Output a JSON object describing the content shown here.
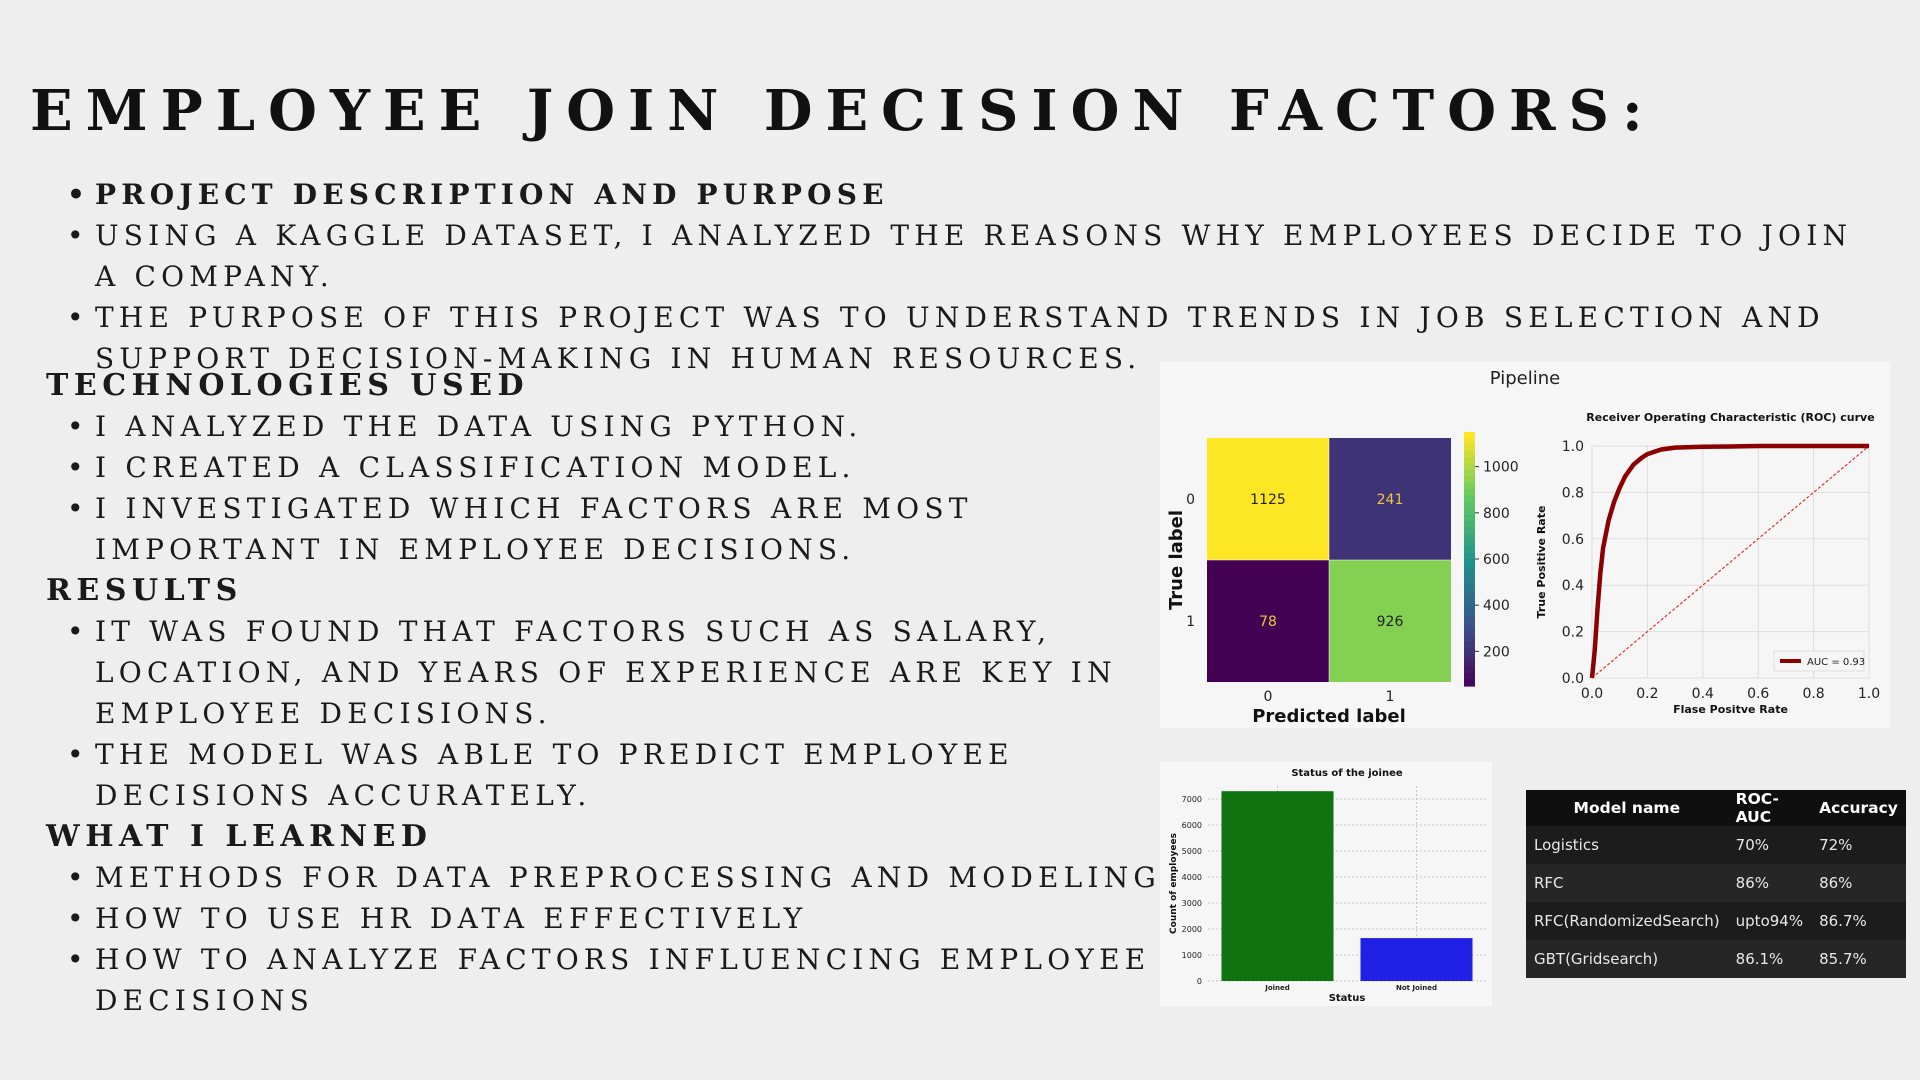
{
  "title": "EMPLOYEE JOIN DECISION FACTORS:",
  "sections": {
    "purpose": {
      "items": [
        "PROJECT DESCRIPTION AND PURPOSE",
        "USING A KAGGLE DATASET, I ANALYZED THE REASONS WHY EMPLOYEES DECIDE TO JOIN A COMPANY.",
        " THE PURPOSE OF THIS PROJECT WAS TO UNDERSTAND TRENDS IN JOB SELECTION AND SUPPORT DECISION-MAKING IN HUMAN RESOURCES."
      ]
    },
    "technologies": {
      "heading": "TECHNOLOGIES USED",
      "items": [
        "I ANALYZED THE DATA USING PYTHON.",
        "I CREATED A CLASSIFICATION MODEL.",
        "I INVESTIGATED WHICH FACTORS ARE MOST IMPORTANT IN EMPLOYEE DECISIONS."
      ]
    },
    "results": {
      "heading": "RESULTS",
      "items": [
        "IT WAS FOUND THAT FACTORS SUCH AS SALARY, LOCATION, AND YEARS OF EXPERIENCE ARE KEY IN EMPLOYEE DECISIONS.",
        " THE MODEL WAS ABLE TO PREDICT EMPLOYEE DECISIONS ACCURATELY."
      ]
    },
    "learned": {
      "heading": "WHAT I LEARNED",
      "items": [
        "METHODS FOR DATA PREPROCESSING AND MODELING",
        "HOW TO USE HR DATA EFFECTIVELY",
        "HOW TO ANALYZE FACTORS INFLUENCING EMPLOYEE DECISIONS"
      ]
    }
  },
  "colors": {
    "background": "#eeeeee",
    "roc_curve": "#8b0000",
    "bar_joined": "#0f730f",
    "bar_not_joined": "#1f1fe6"
  },
  "chart_data": [
    {
      "type": "heatmap",
      "title": "Pipeline",
      "xlabel": "Predicted label",
      "ylabel": "True label",
      "x_ticks": [
        "0",
        "1"
      ],
      "y_ticks": [
        "0",
        "1"
      ],
      "matrix": [
        [
          1125,
          241
        ],
        [
          78,
          926
        ]
      ],
      "colorbar_ticks": [
        "200",
        "400",
        "600",
        "800",
        "1000"
      ],
      "colormap": "viridis"
    },
    {
      "type": "line",
      "title": "Receiver Operating Characteristic (ROC) curve",
      "xlabel": "Flase Positve Rate",
      "ylabel": "True Positive Rate",
      "xlim": [
        0,
        1
      ],
      "ylim": [
        0,
        1
      ],
      "x_ticks": [
        "0.0",
        "0.2",
        "0.4",
        "0.6",
        "0.8",
        "1.0"
      ],
      "y_ticks": [
        "0.0",
        "0.2",
        "0.4",
        "0.6",
        "0.8",
        "1.0"
      ],
      "grid": true,
      "legend_position": "bottom-right",
      "series": [
        {
          "name": "AUC = 0.93",
          "x": [
            0,
            0.01,
            0.02,
            0.03,
            0.04,
            0.06,
            0.08,
            0.1,
            0.12,
            0.15,
            0.18,
            0.2,
            0.25,
            0.3,
            0.4,
            0.5,
            0.6,
            0.8,
            1.0
          ],
          "y": [
            0,
            0.12,
            0.3,
            0.45,
            0.56,
            0.68,
            0.76,
            0.82,
            0.87,
            0.92,
            0.95,
            0.965,
            0.985,
            0.993,
            0.997,
            0.998,
            1.0,
            1.0,
            1.0
          ]
        },
        {
          "name": "",
          "style": "dashed",
          "x": [
            0,
            1
          ],
          "y": [
            0,
            1
          ]
        }
      ]
    },
    {
      "type": "bar",
      "title": "Status of the joinee",
      "xlabel": "Status",
      "ylabel": "Count of employees",
      "categories": [
        "Joined",
        "Not Joined"
      ],
      "values": [
        7300,
        1650
      ],
      "ylim": [
        0,
        7500
      ],
      "y_ticks": [
        "0",
        "1000",
        "2000",
        "3000",
        "4000",
        "5000",
        "6000",
        "7000"
      ],
      "grid": true
    },
    {
      "type": "table",
      "columns": [
        "Model name",
        "ROC-AUC",
        "Accuracy"
      ],
      "rows": [
        [
          "Logistics",
          "70%",
          "72%"
        ],
        [
          "RFC",
          "86%",
          "86%"
        ],
        [
          "RFC(RandomizedSearch)",
          "upto94%",
          "86.7%"
        ],
        [
          "GBT(Gridsearch)",
          "86.1%",
          "85.7%"
        ]
      ]
    }
  ]
}
